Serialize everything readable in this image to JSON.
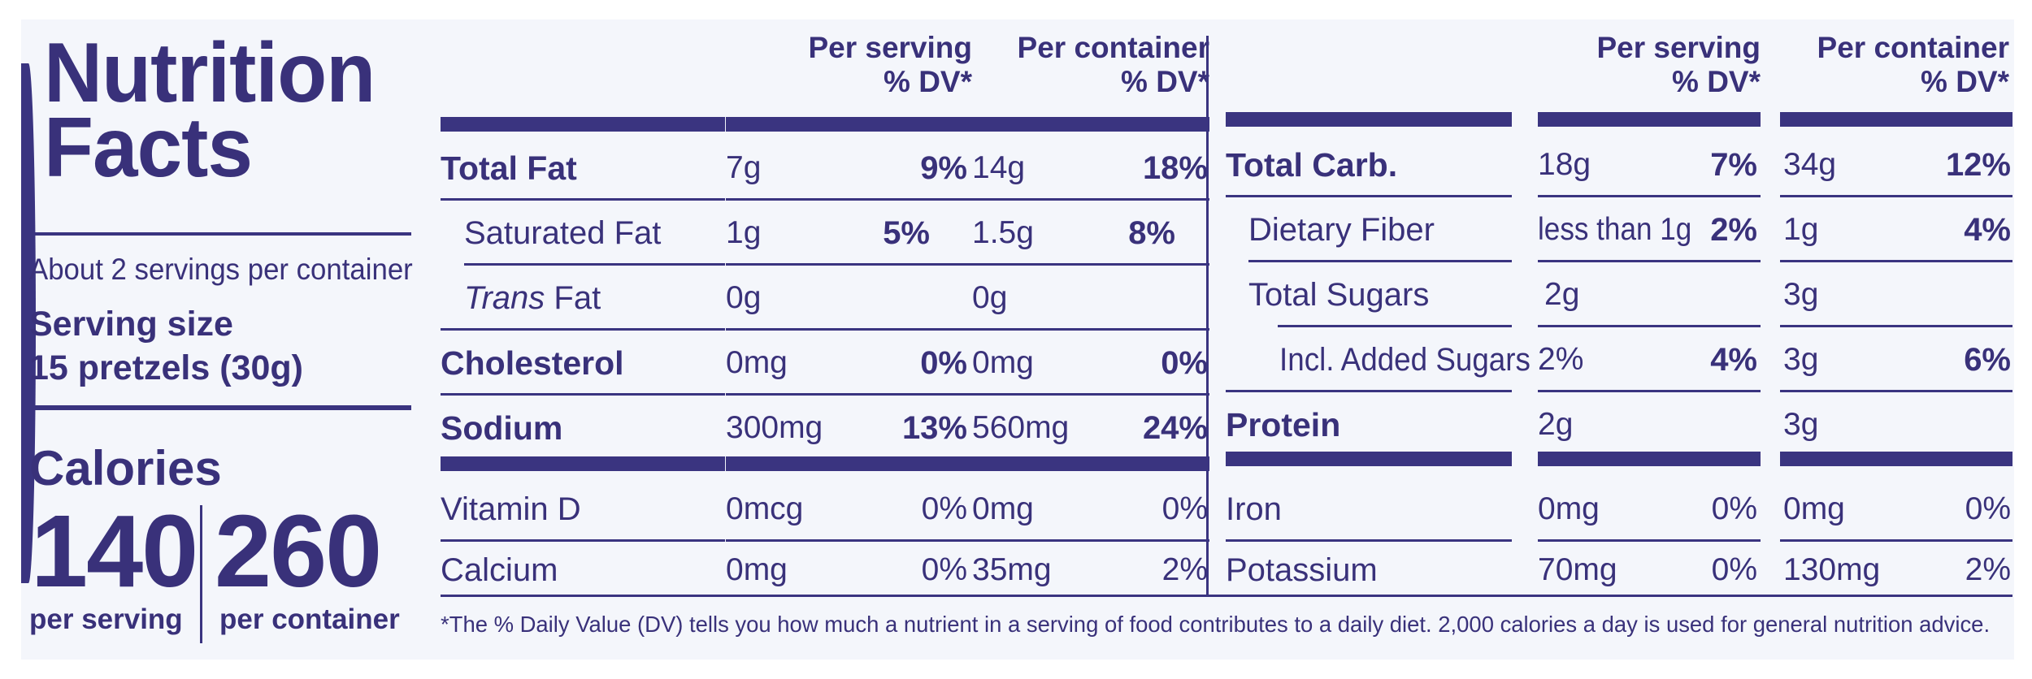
{
  "left": {
    "title_line1": "Nutrition",
    "title_line2": "Facts",
    "servings": "About 2 servings per container",
    "serving_size_label": "Serving size",
    "serving_size_value": "15 pretzels (30g)",
    "calories_label": "Calories",
    "calories_serving": "140",
    "calories_container": "260",
    "per_serving": "per serving",
    "per_container": "per container"
  },
  "headers": {
    "serving_line1": "Per serving",
    "serving_line2": "% DV*",
    "container_line1": "Per container",
    "container_line2": "% DV*"
  },
  "left_rows": [
    {
      "name": "Total Fat",
      "s_amt": "7g",
      "s_dv": "9%",
      "c_amt": "14g",
      "c_dv": "18%"
    },
    {
      "name": "Saturated Fat",
      "s_amt": "1g",
      "s_dv": "5%",
      "c_amt": "1.5g",
      "c_dv": "8%"
    },
    {
      "name_italic": "Trans",
      "name_rest": " Fat",
      "s_amt": "0g",
      "c_amt": "0g"
    },
    {
      "name": "Cholesterol",
      "s_amt": "0mg",
      "s_dv": "0%",
      "c_amt": "0mg",
      "c_dv": "0%"
    },
    {
      "name": "Sodium",
      "s_amt": "300mg",
      "s_dv": "13%",
      "c_amt": "560mg",
      "c_dv": "24%"
    },
    {
      "name": "Vitamin D",
      "s_amt": "0mcg",
      "s_dv": "0%",
      "c_amt": "0mg",
      "c_dv": "0%"
    },
    {
      "name": "Calcium",
      "s_amt": "0mg",
      "s_dv": "0%",
      "c_amt": "35mg",
      "c_dv": "2%"
    }
  ],
  "right_rows": [
    {
      "name": "Total Carb.",
      "s_amt": "18g",
      "s_dv": "7%",
      "c_amt": "34g",
      "c_dv": "12%"
    },
    {
      "name": "Dietary Fiber",
      "s_amt": "less than 1g",
      "s_dv": "2%",
      "c_amt": "1g",
      "c_dv": "4%"
    },
    {
      "name": "Total Sugars",
      "s_amt": "2g",
      "c_amt": "3g"
    },
    {
      "name": "Incl. Added Sugars",
      "s_amt": "2%",
      "s_dv": "4%",
      "c_amt": "3g",
      "c_dv": "6%"
    },
    {
      "name": "Protein",
      "s_amt": "2g",
      "c_amt": "3g"
    },
    {
      "name": "Iron",
      "s_amt": "0mg",
      "s_dv": "0%",
      "c_amt": "0mg",
      "c_dv": "0%"
    },
    {
      "name": "Potassium",
      "s_amt": "70mg",
      "s_dv": "0%",
      "c_amt": "130mg",
      "c_dv": "2%"
    }
  ],
  "footnote": "*The % Daily Value (DV) tells you how much a nutrient in a serving of food contributes to a daily diet. 2,000 calories a day is used for general nutrition advice.",
  "colors": {
    "ink": "#3a3480",
    "background": "#f4f6fb"
  }
}
